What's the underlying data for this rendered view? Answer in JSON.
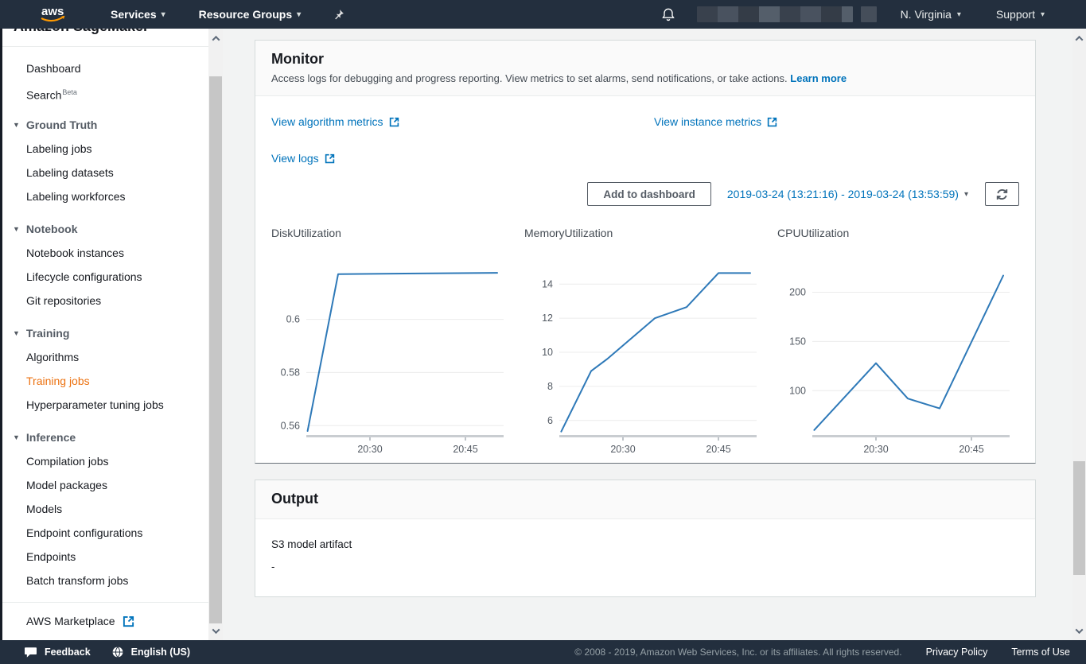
{
  "topnav": {
    "logo_text": "aws",
    "services_label": "Services",
    "resource_groups_label": "Resource Groups",
    "region_label": "N. Virginia",
    "support_label": "Support"
  },
  "sidebar": {
    "clipped_title": "Amazon SageMaker",
    "items": [
      {
        "type": "link",
        "label": "Dashboard"
      },
      {
        "type": "link",
        "label": "Search",
        "badge": "Beta"
      },
      {
        "type": "section",
        "label": "Ground Truth"
      },
      {
        "type": "link",
        "label": "Labeling jobs"
      },
      {
        "type": "link",
        "label": "Labeling datasets"
      },
      {
        "type": "link",
        "label": "Labeling workforces"
      },
      {
        "type": "section",
        "label": "Notebook"
      },
      {
        "type": "link",
        "label": "Notebook instances"
      },
      {
        "type": "link",
        "label": "Lifecycle configurations"
      },
      {
        "type": "link",
        "label": "Git repositories"
      },
      {
        "type": "section",
        "label": "Training"
      },
      {
        "type": "link",
        "label": "Algorithms"
      },
      {
        "type": "link",
        "label": "Training jobs",
        "selected": true
      },
      {
        "type": "link",
        "label": "Hyperparameter tuning jobs"
      },
      {
        "type": "section",
        "label": "Inference"
      },
      {
        "type": "link",
        "label": "Compilation jobs"
      },
      {
        "type": "link",
        "label": "Model packages"
      },
      {
        "type": "link",
        "label": "Models"
      },
      {
        "type": "link",
        "label": "Endpoint configurations"
      },
      {
        "type": "link",
        "label": "Endpoints"
      },
      {
        "type": "link",
        "label": "Batch transform jobs"
      }
    ],
    "marketplace_label": "AWS Marketplace"
  },
  "monitor": {
    "title": "Monitor",
    "description": "Access logs for debugging and progress reporting. View metrics to set alarms, send notifications, or take actions.",
    "learn_more_label": "Learn more",
    "links": [
      "View algorithm metrics",
      "View instance metrics",
      "View logs"
    ],
    "add_to_dashboard_label": "Add to dashboard",
    "date_range_label": "2019-03-24 (13:21:16) - 2019-03-24 (13:53:59)"
  },
  "chart_data": [
    {
      "type": "line",
      "title": "DiskUtilization",
      "x_unit": "minutes after 20:00",
      "x": [
        20.2,
        25.0,
        50.0
      ],
      "values": [
        0.558,
        0.617,
        0.6175
      ],
      "yticks": [
        0.56,
        0.58,
        0.6
      ],
      "ytick_labels": [
        "0.56",
        "0.58",
        "0.6"
      ],
      "xticks": [
        30,
        45
      ],
      "xtick_labels": [
        "20:30",
        "20:45"
      ],
      "ylim": [
        0.5565,
        0.6235
      ],
      "xlim": [
        20,
        51
      ],
      "grid": "horizontal",
      "legend": "none"
    },
    {
      "type": "line",
      "title": "MemoryUtilization",
      "x_unit": "minutes after 20:00",
      "x": [
        20.3,
        25.0,
        27.5,
        35.0,
        40.0,
        45.0,
        50.0
      ],
      "values": [
        5.35,
        8.9,
        9.6,
        12.0,
        12.65,
        14.65,
        14.65
      ],
      "yticks": [
        6,
        8,
        10,
        12,
        14
      ],
      "ytick_labels": [
        "6",
        "8",
        "10",
        "12",
        "14"
      ],
      "xticks": [
        30,
        45
      ],
      "xtick_labels": [
        "20:30",
        "20:45"
      ],
      "ylim": [
        5.15,
        15.6
      ],
      "xlim": [
        20,
        51
      ],
      "grid": "horizontal",
      "legend": "none"
    },
    {
      "type": "line",
      "title": "CPUUtilization",
      "x_unit": "minutes after 20:00",
      "x": [
        20.3,
        30.0,
        35.0,
        40.0,
        50.0
      ],
      "values": [
        60,
        128,
        92,
        82,
        217
      ],
      "yticks": [
        100,
        150,
        200
      ],
      "ytick_labels": [
        "100",
        "150",
        "200"
      ],
      "xticks": [
        30,
        45
      ],
      "xtick_labels": [
        "20:30",
        "20:45"
      ],
      "ylim": [
        55,
        236
      ],
      "xlim": [
        20,
        51
      ],
      "grid": "horizontal",
      "legend": "none"
    }
  ],
  "output": {
    "title": "Output",
    "s3_label": "S3 model artifact",
    "s3_value": "-"
  },
  "footer": {
    "feedback_label": "Feedback",
    "language_label": "English (US)",
    "copyright": "© 2008 - 2019, Amazon Web Services, Inc. or its affiliates. All rights reserved.",
    "privacy_label": "Privacy Policy",
    "terms_label": "Terms of Use"
  },
  "colors": {
    "nav_bg": "#232f3e",
    "selected_orange": "#ec7211",
    "link_blue": "#0073bb",
    "chart_line": "#2e79b8",
    "aws_smile": "#ff9900"
  }
}
